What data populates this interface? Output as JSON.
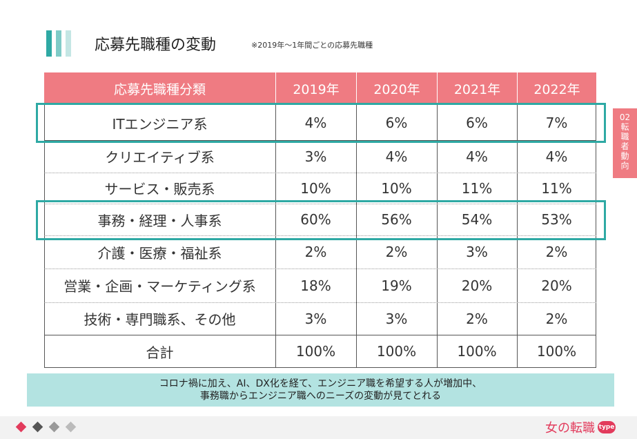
{
  "title": "応募先職種の変動",
  "note": "※2019年〜1年間ごとの応募先職種",
  "table": {
    "headers": [
      "応募先職種分類",
      "2019年",
      "2020年",
      "2021年",
      "2022年"
    ],
    "rows": [
      [
        "ITエンジニア系",
        "4%",
        "6%",
        "6%",
        "7%"
      ],
      [
        "クリエイティブ系",
        "3%",
        "4%",
        "4%",
        "4%"
      ],
      [
        "サービス・販売系",
        "10%",
        "10%",
        "11%",
        "11%"
      ],
      [
        "事務・経理・人事系",
        "60%",
        "56%",
        "54%",
        "53%"
      ],
      [
        "介護・医療・福祉系",
        "2%",
        "2%",
        "3%",
        "2%"
      ],
      [
        "営業・企画・マーケティング系",
        "18%",
        "19%",
        "20%",
        "20%"
      ],
      [
        "技術・専門職系、その他",
        "3%",
        "3%",
        "2%",
        "2%"
      ],
      [
        "合計",
        "100%",
        "100%",
        "100%",
        "100%"
      ]
    ]
  },
  "side_tab": [
    "02",
    "転",
    "職",
    "者",
    "動",
    "向"
  ],
  "summary": {
    "line1": "コロナ禍に加え、AI、DX化を経て、エンジニア職を希望する人が増加中、",
    "line2": "事務職からエンジニア職へのニーズの変動が見てとれる"
  },
  "logo": {
    "text": "女の転職",
    "badge": "type"
  },
  "colors": {
    "header_bg": "#ef7b82",
    "highlight": "#2ea9a4",
    "summary_bg": "#b3e3e1",
    "brand": "#e23b5c"
  }
}
